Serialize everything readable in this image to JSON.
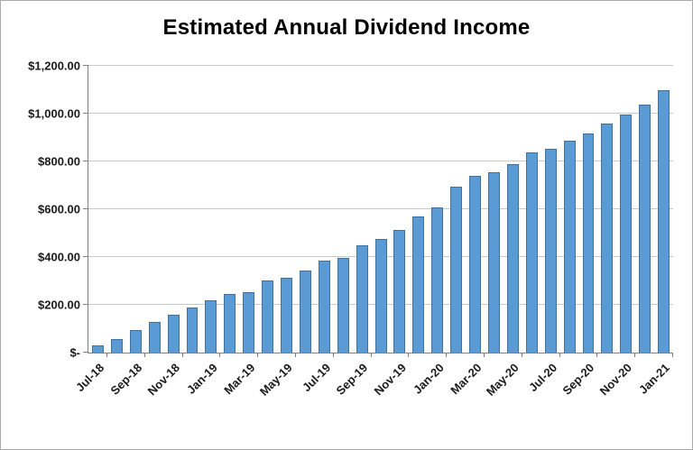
{
  "chart_data": {
    "type": "bar",
    "title": "Estimated Annual Dividend Income",
    "xlabel": "",
    "ylabel": "",
    "ylim": [
      0,
      1200
    ],
    "grid": "horizontal",
    "legend": "none",
    "x_label_rotation_deg": -45,
    "x_label_interval": 2,
    "categories": [
      "Jul-18",
      "Aug-18",
      "Sep-18",
      "Oct-18",
      "Nov-18",
      "Dec-18",
      "Jan-19",
      "Feb-19",
      "Mar-19",
      "Apr-19",
      "May-19",
      "Jun-19",
      "Jul-19",
      "Aug-19",
      "Sep-19",
      "Oct-19",
      "Nov-19",
      "Dec-19",
      "Jan-20",
      "Feb-20",
      "Mar-20",
      "Apr-20",
      "May-20",
      "Jun-20",
      "Jul-20",
      "Aug-20",
      "Sep-20",
      "Oct-20",
      "Nov-20",
      "Dec-20",
      "Jan-21"
    ],
    "values": [
      30,
      58,
      95,
      128,
      158,
      188,
      218,
      245,
      252,
      302,
      315,
      342,
      385,
      398,
      450,
      475,
      512,
      570,
      608,
      695,
      740,
      755,
      790,
      838,
      852,
      885,
      918,
      958,
      998,
      1038,
      1098
    ],
    "x_tick_labels_shown": [
      "Jul-18",
      "Sep-18",
      "Nov-18",
      "Jan-19",
      "Mar-19",
      "May-19",
      "Jul-19",
      "Sep-19",
      "Nov-19",
      "Jan-20",
      "Mar-20",
      "May-20",
      "Jul-20",
      "Sep-20",
      "Nov-20",
      "Jan-21"
    ],
    "y_ticks": [
      {
        "value": 0,
        "label": "$-"
      },
      {
        "value": 200,
        "label": "$200.00"
      },
      {
        "value": 400,
        "label": "$400.00"
      },
      {
        "value": 600,
        "label": "$600.00"
      },
      {
        "value": 800,
        "label": "$800.00"
      },
      {
        "value": 1000,
        "label": "$1,000.00"
      },
      {
        "value": 1200,
        "label": "$1,200.00"
      }
    ],
    "colors": {
      "bar_fill": "#5b9bd5",
      "bar_border": "#41719c",
      "gridline": "#c9c9c9",
      "axis_line": "#808080",
      "title_text": "#000000",
      "tick_text": "#1a1a1a",
      "frame_border": "#aaaaaa",
      "background": "#ffffff"
    }
  }
}
